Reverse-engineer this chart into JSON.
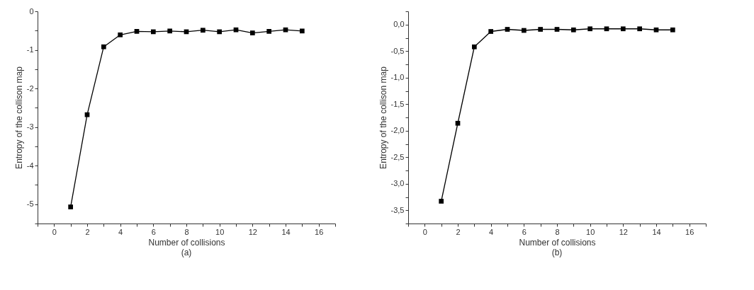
{
  "chart_data": [
    {
      "type": "line",
      "title": "(a)",
      "xlabel": "Number of collisions",
      "ylabel": "Entropy of the collison map",
      "marker": "square",
      "line_style": "solid",
      "grid": false,
      "legend": false,
      "x": [
        1,
        2,
        3,
        4,
        5,
        6,
        7,
        8,
        9,
        10,
        11,
        12,
        13,
        14,
        15
      ],
      "series": [
        {
          "color": "#000000",
          "values": [
            -5.07,
            -2.68,
            -0.92,
            -0.61,
            -0.52,
            -0.53,
            -0.51,
            -0.53,
            -0.49,
            -0.53,
            -0.48,
            -0.56,
            -0.52,
            -0.48,
            -0.51
          ]
        }
      ],
      "xlim": [
        -1,
        17
      ],
      "ylim": [
        -5.5,
        0
      ],
      "xticks": [
        {
          "value": -1,
          "label": null
        },
        0,
        {
          "value": 1,
          "label": null
        },
        2,
        {
          "value": 3,
          "label": null
        },
        4,
        {
          "value": 5,
          "label": null
        },
        6,
        {
          "value": 7,
          "label": null
        },
        8,
        {
          "value": 9,
          "label": null
        },
        10,
        {
          "value": 11,
          "label": null
        },
        12,
        {
          "value": 13,
          "label": null
        },
        14,
        {
          "value": 15,
          "label": null
        },
        16,
        {
          "value": 17,
          "label": null
        }
      ],
      "yticks": [
        {
          "value": -5.5,
          "label": null
        },
        -5,
        {
          "value": -4.5,
          "label": null
        },
        -4,
        {
          "value": -3.5,
          "label": null
        },
        -3,
        {
          "value": -2.5,
          "label": null
        },
        -2,
        {
          "value": -1.5,
          "label": null
        },
        -1,
        {
          "value": -0.5,
          "label": null
        },
        0
      ]
    },
    {
      "type": "line",
      "title": "(b)",
      "xlabel": "Number of collisions",
      "ylabel": "Entropy of the collison map",
      "marker": "square",
      "line_style": "solid",
      "grid": false,
      "legend": false,
      "x": [
        1,
        2,
        3,
        4,
        5,
        6,
        7,
        8,
        9,
        10,
        11,
        12,
        13,
        14,
        15
      ],
      "series": [
        {
          "color": "#000000",
          "values": [
            -3.33,
            -1.86,
            -0.42,
            -0.13,
            -0.09,
            -0.11,
            -0.09,
            -0.09,
            -0.1,
            -0.08,
            -0.08,
            -0.08,
            -0.08,
            -0.1,
            -0.1
          ]
        }
      ],
      "xlim": [
        -1,
        17
      ],
      "ylim": [
        -3.75,
        0.25
      ],
      "xticks": [
        {
          "value": -1,
          "label": null
        },
        0,
        {
          "value": 1,
          "label": null
        },
        2,
        {
          "value": 3,
          "label": null
        },
        4,
        {
          "value": 5,
          "label": null
        },
        6,
        {
          "value": 7,
          "label": null
        },
        8,
        {
          "value": 9,
          "label": null
        },
        10,
        {
          "value": 11,
          "label": null
        },
        12,
        {
          "value": 13,
          "label": null
        },
        14,
        {
          "value": 15,
          "label": null
        },
        16,
        {
          "value": 17,
          "label": null
        }
      ],
      "yticks": [
        {
          "value": -3.75,
          "label": null
        },
        {
          "value": -3.5,
          "label": "-3,5"
        },
        {
          "value": -3.25,
          "label": null
        },
        {
          "value": -3,
          "label": "-3,0"
        },
        {
          "value": -2.75,
          "label": null
        },
        {
          "value": -2.5,
          "label": "-2,5"
        },
        {
          "value": -2.25,
          "label": null
        },
        {
          "value": -2,
          "label": "-2,0"
        },
        {
          "value": -1.75,
          "label": null
        },
        {
          "value": -1.5,
          "label": "-1,5"
        },
        {
          "value": -1.25,
          "label": null
        },
        {
          "value": -1,
          "label": "-1,0"
        },
        {
          "value": -0.75,
          "label": null
        },
        {
          "value": -0.5,
          "label": "-0,5"
        },
        {
          "value": -0.25,
          "label": null
        },
        {
          "value": 0,
          "label": "0,0"
        },
        {
          "value": 0.25,
          "label": null
        }
      ]
    }
  ]
}
